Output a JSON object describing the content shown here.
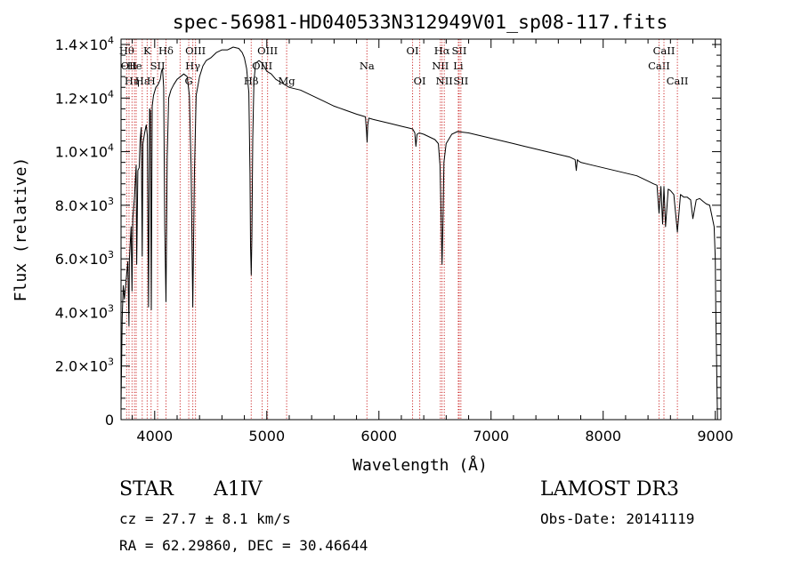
{
  "chart_data": {
    "type": "line",
    "title": "spec-56981-HD040533N312949V01_sp08-117.fits",
    "xlabel": "Wavelength (Å)",
    "ylabel": "Flux (relative)",
    "xlim": [
      3700,
      9050
    ],
    "ylim": [
      0,
      14200
    ],
    "x_ticks": [
      {
        "value": 4000,
        "label": "4000"
      },
      {
        "value": 5000,
        "label": "5000"
      },
      {
        "value": 6000,
        "label": "6000"
      },
      {
        "value": 7000,
        "label": "7000"
      },
      {
        "value": 8000,
        "label": "8000"
      },
      {
        "value": 9000,
        "label": "9000"
      }
    ],
    "y_ticks": [
      {
        "value": 0,
        "mant": "0",
        "exp": ""
      },
      {
        "value": 2000,
        "mant": "2.0×10",
        "exp": "3"
      },
      {
        "value": 4000,
        "mant": "4.0×10",
        "exp": "3"
      },
      {
        "value": 6000,
        "mant": "6.0×10",
        "exp": "3"
      },
      {
        "value": 8000,
        "mant": "8.0×10",
        "exp": "3"
      },
      {
        "value": 10000,
        "mant": "1.0×10",
        "exp": "4"
      },
      {
        "value": 12000,
        "mant": "1.2×10",
        "exp": "4"
      },
      {
        "value": 14000,
        "mant": "1.4×10",
        "exp": "4"
      }
    ],
    "series": [
      {
        "name": "flux",
        "x": [
          3700,
          3710,
          3720,
          3730,
          3745,
          3760,
          3771,
          3775,
          3790,
          3798,
          3805,
          3820,
          3835,
          3840,
          3850,
          3862,
          3870,
          3880,
          3889,
          3895,
          3910,
          3925,
          3935,
          3945,
          3955,
          3962,
          3970,
          3978,
          3990,
          4010,
          4030,
          4050,
          4060,
          4070,
          4080,
          4090,
          4101,
          4112,
          4125,
          4145,
          4170,
          4200,
          4230,
          4260,
          4290,
          4310,
          4325,
          4340,
          4355,
          4370,
          4400,
          4430,
          4460,
          4500,
          4550,
          4600,
          4650,
          4700,
          4750,
          4780,
          4800,
          4820,
          4840,
          4850,
          4855,
          4861,
          4867,
          4875,
          4885,
          4900,
          4930,
          4960,
          5000,
          5040,
          5080,
          5120,
          5160,
          5200,
          5250,
          5300,
          5400,
          5500,
          5600,
          5700,
          5800,
          5880,
          5890,
          5895,
          5900,
          5910,
          5950,
          6000,
          6100,
          6200,
          6300,
          6320,
          6330,
          6340,
          6360,
          6400,
          6450,
          6500,
          6530,
          6545,
          6555,
          6563,
          6570,
          6580,
          6600,
          6650,
          6700,
          6800,
          6900,
          7000,
          7100,
          7200,
          7300,
          7400,
          7500,
          7600,
          7650,
          7700,
          7750,
          7760,
          7770,
          7780,
          7800,
          7900,
          8000,
          8100,
          8200,
          8300,
          8400,
          8450,
          8480,
          8498,
          8515,
          8530,
          8542,
          8556,
          8580,
          8600,
          8630,
          8662,
          8690,
          8720,
          8750,
          8780,
          8800,
          8830,
          8860,
          8890,
          8920,
          8950,
          8970,
          8990,
          9000,
          9005,
          9010,
          9015,
          9020
        ],
        "values": [
          500,
          3800,
          5000,
          4500,
          5200,
          5900,
          3500,
          6000,
          7200,
          4800,
          7500,
          8300,
          9500,
          5800,
          9300,
          9400,
          10400,
          10900,
          6100,
          10300,
          10700,
          11000,
          10600,
          4200,
          11600,
          11500,
          4100,
          11700,
          12100,
          12400,
          12500,
          12700,
          13000,
          13100,
          12400,
          7200,
          4400,
          9800,
          12000,
          12300,
          12500,
          12700,
          12800,
          12900,
          12800,
          12100,
          9500,
          4200,
          9300,
          12100,
          12800,
          13200,
          13400,
          13500,
          13700,
          13800,
          13800,
          13900,
          13850,
          13700,
          13500,
          13100,
          12200,
          9200,
          6500,
          5400,
          6800,
          10500,
          12600,
          13300,
          13400,
          13300,
          13000,
          12900,
          12700,
          12600,
          12500,
          12400,
          12350,
          12300,
          12100,
          11900,
          11700,
          11550,
          11400,
          11300,
          10700,
          10350,
          11000,
          11250,
          11200,
          11150,
          11050,
          10950,
          10850,
          10700,
          10200,
          10650,
          10700,
          10650,
          10550,
          10450,
          10300,
          9500,
          7500,
          5800,
          7200,
          9600,
          10300,
          10650,
          10750,
          10700,
          10600,
          10500,
          10400,
          10300,
          10200,
          10100,
          10000,
          9900,
          9850,
          9800,
          9700,
          9300,
          9700,
          9650,
          9600,
          9500,
          9400,
          9300,
          9200,
          9100,
          8900,
          8800,
          8750,
          7700,
          8700,
          7300,
          8700,
          7200,
          8600,
          8550,
          8400,
          7000,
          8400,
          8300,
          8300,
          8200,
          7500,
          8200,
          8250,
          8150,
          8050,
          8000,
          7600,
          7200,
          6000,
          4000,
          2500,
          1200,
          0
        ]
      }
    ],
    "line_markers": [
      {
        "wl": 3750,
        "label": "Hθ",
        "tier": 1
      },
      {
        "wl": 3771,
        "label": "OII",
        "tier": 2
      },
      {
        "wl": 3798,
        "label": "Hη",
        "tier": 3
      },
      {
        "wl": 3820,
        "label": "He",
        "tier": 2
      },
      {
        "wl": 3835,
        "label": "",
        "tier": 0
      },
      {
        "wl": 3889,
        "label": "Hε",
        "tier": 3
      },
      {
        "wl": 3933,
        "label": "K",
        "tier": 1
      },
      {
        "wl": 3968,
        "label": "H",
        "tier": 3
      },
      {
        "wl": 4026,
        "label": "SII",
        "tier": 2
      },
      {
        "wl": 4101,
        "label": "Hδ",
        "tier": 1
      },
      {
        "wl": 4227,
        "label": "",
        "tier": 0
      },
      {
        "wl": 4304,
        "label": "G",
        "tier": 3
      },
      {
        "wl": 4340,
        "label": "Hγ",
        "tier": 2
      },
      {
        "wl": 4364,
        "label": "OIII",
        "tier": 1
      },
      {
        "wl": 4861,
        "label": "Hβ",
        "tier": 3
      },
      {
        "wl": 4959,
        "label": "OIII",
        "tier": 2
      },
      {
        "wl": 5007,
        "label": "OIII",
        "tier": 1
      },
      {
        "wl": 5177,
        "label": "Mg",
        "tier": 3
      },
      {
        "wl": 5893,
        "label": "Na",
        "tier": 2
      },
      {
        "wl": 6300,
        "label": "OI",
        "tier": 1
      },
      {
        "wl": 6364,
        "label": "OI",
        "tier": 3
      },
      {
        "wl": 6548,
        "label": "NII",
        "tier": 2
      },
      {
        "wl": 6563,
        "label": "Hα",
        "tier": 1
      },
      {
        "wl": 6583,
        "label": "NII",
        "tier": 3
      },
      {
        "wl": 6708,
        "label": "Li",
        "tier": 2
      },
      {
        "wl": 6716,
        "label": "SII",
        "tier": 1
      },
      {
        "wl": 6731,
        "label": "SII",
        "tier": 3
      },
      {
        "wl": 8498,
        "label": "CaII",
        "tier": 2
      },
      {
        "wl": 8542,
        "label": "CaII",
        "tier": 1
      },
      {
        "wl": 8662,
        "label": "CaII",
        "tier": 3
      }
    ],
    "colors": {
      "axis": "#000000",
      "series": "#000000",
      "marker": "#cc2a2a",
      "background": "#ffffff"
    }
  },
  "info": {
    "object_type": "STAR",
    "spectral_class": "A1IV",
    "survey": "LAMOST DR3",
    "redshift": "cz =  27.7 ± 8.1 km/s",
    "obs_date": "Obs-Date: 20141119",
    "coords": "RA =  62.29860, DEC =  30.46644"
  }
}
